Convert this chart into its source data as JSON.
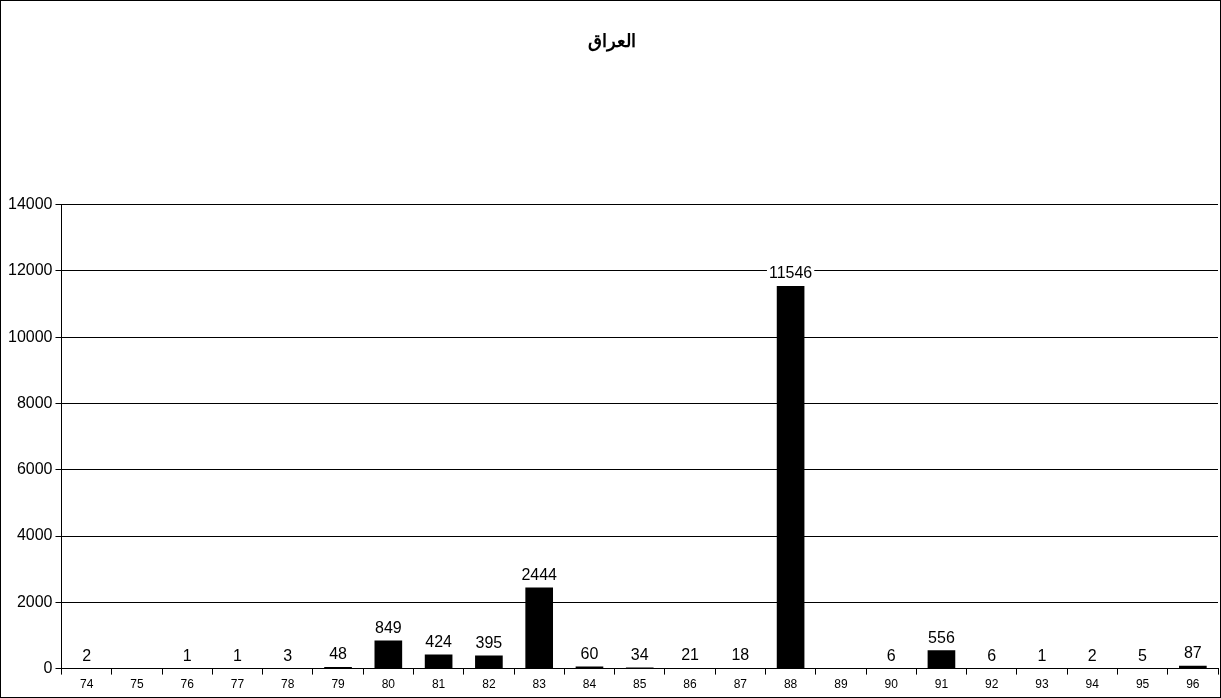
{
  "chart_data": {
    "type": "bar",
    "title": "العراق",
    "categories": [
      "74",
      "75",
      "76",
      "77",
      "78",
      "79",
      "80",
      "81",
      "82",
      "83",
      "84",
      "85",
      "86",
      "87",
      "88",
      "89",
      "90",
      "91",
      "92",
      "93",
      "94",
      "95",
      "96"
    ],
    "values": [
      2,
      null,
      1,
      1,
      3,
      48,
      849,
      424,
      395,
      2444,
      60,
      34,
      21,
      18,
      11546,
      null,
      6,
      556,
      6,
      1,
      2,
      5,
      87
    ],
    "color": "#000000",
    "ylim": [
      0,
      14000
    ],
    "yticks": [
      0,
      2000,
      4000,
      6000,
      8000,
      10000,
      12000,
      14000
    ],
    "grid": "y",
    "legend": false,
    "data_labels": true
  }
}
